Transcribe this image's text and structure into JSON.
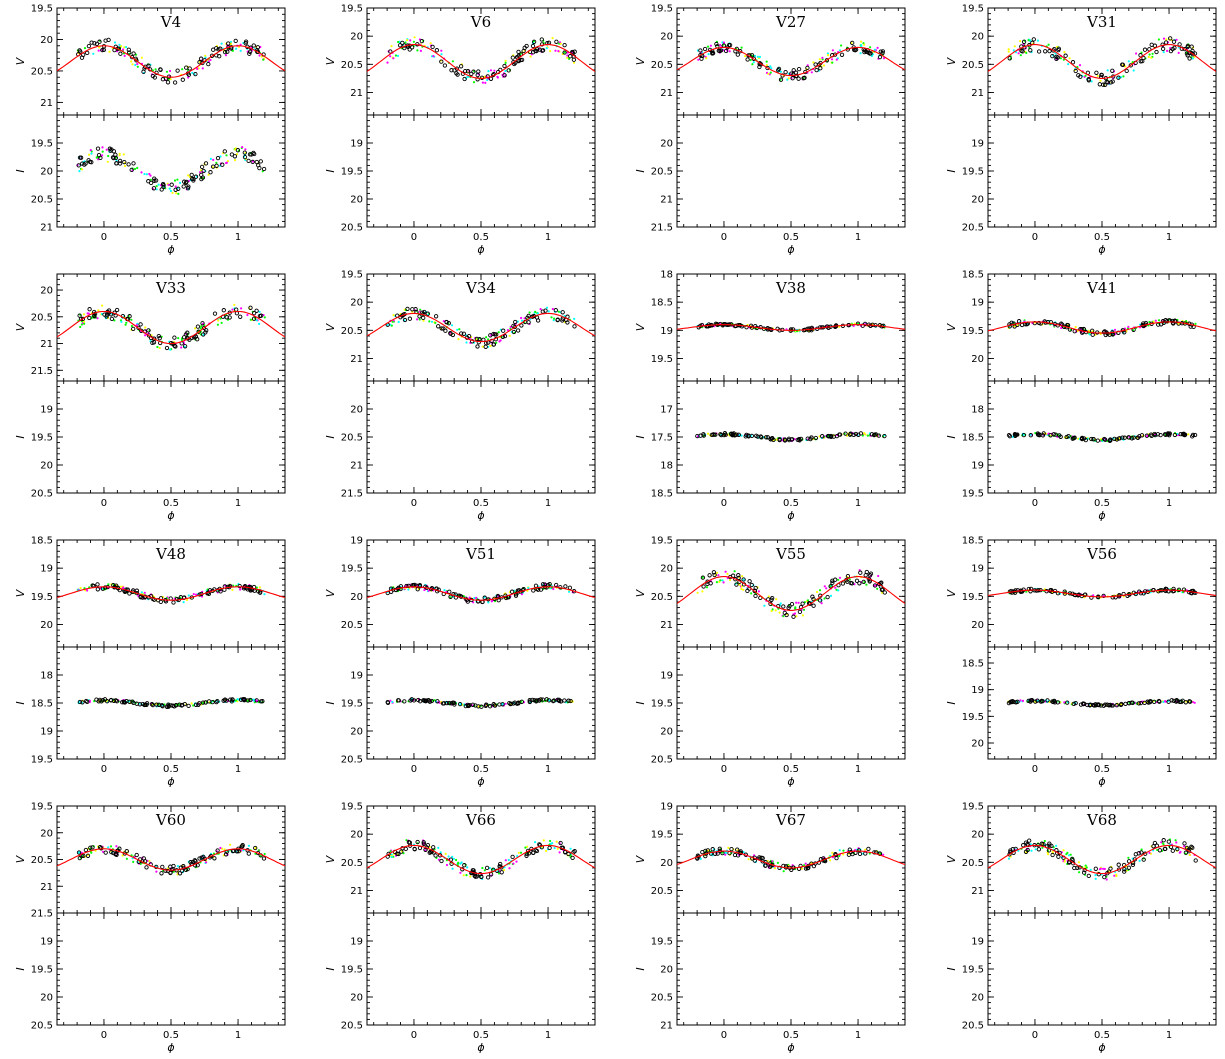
{
  "chart_data": {
    "type": "scatter",
    "grid": false,
    "colors": {
      "points": "#000000",
      "fit": "#ff0000",
      "extra_bands": [
        "#00ffff",
        "#ff00ff",
        "#ffff00",
        "#00ff00"
      ]
    },
    "panels": [
      {
        "title": "V4",
        "xlabel": "ϕ",
        "xlim": [
          -0.35,
          1.35
        ],
        "xticks": [
          0,
          0.5,
          1
        ],
        "v": {
          "ylabel": "V",
          "ylim": [
            21.2,
            19.5
          ],
          "yticks": [
            19.5,
            20,
            20.5,
            21
          ],
          "amp": 0.25,
          "has_fit": true,
          "points": true
        },
        "i": {
          "ylabel": "I",
          "ylim": [
            21,
            19
          ],
          "yticks": [
            19.5,
            20,
            20.5,
            21
          ],
          "amp": 0.3,
          "has_fit": false,
          "points": true
        }
      },
      {
        "title": "V6",
        "xlabel": "ϕ",
        "xlim": [
          -0.35,
          1.35
        ],
        "xticks": [
          0,
          0.5,
          1
        ],
        "v": {
          "ylabel": "V",
          "ylim": [
            21.4,
            19.5
          ],
          "yticks": [
            19.5,
            20,
            20.5,
            21
          ],
          "amp": 0.3,
          "has_fit": true,
          "points": true
        },
        "i": {
          "ylabel": "I",
          "ylim": [
            20.5,
            18.5
          ],
          "yticks": [
            19,
            19.5,
            20,
            20.5
          ],
          "has_fit": false,
          "points": false
        }
      },
      {
        "title": "V27",
        "xlabel": "ϕ",
        "xlim": [
          -0.35,
          1.35
        ],
        "xticks": [
          0,
          0.5,
          1
        ],
        "v": {
          "ylabel": "V",
          "ylim": [
            21.4,
            19.5
          ],
          "yticks": [
            19.5,
            20,
            20.5,
            21
          ],
          "amp": 0.25,
          "has_fit": true,
          "points": true
        },
        "i": {
          "ylabel": "I",
          "ylim": [
            21.5,
            19.5
          ],
          "yticks": [
            20,
            20.5,
            21,
            21.5
          ],
          "has_fit": false,
          "points": false
        }
      },
      {
        "title": "V31",
        "xlabel": "ϕ",
        "xlim": [
          -0.35,
          1.35
        ],
        "xticks": [
          0,
          0.5,
          1
        ],
        "v": {
          "ylabel": "V",
          "ylim": [
            21.4,
            19.5
          ],
          "yticks": [
            19.5,
            20,
            20.5,
            21
          ],
          "amp": 0.3,
          "has_fit": true,
          "points": true
        },
        "i": {
          "ylabel": "I",
          "ylim": [
            20.5,
            18.5
          ],
          "yticks": [
            19,
            19.5,
            20,
            20.5
          ],
          "has_fit": false,
          "points": false
        }
      },
      {
        "title": "V33",
        "xlabel": "ϕ",
        "xlim": [
          -0.35,
          1.35
        ],
        "xticks": [
          0,
          0.5,
          1
        ],
        "v": {
          "ylabel": "V",
          "ylim": [
            21.7,
            19.7
          ],
          "yticks": [
            20,
            20.5,
            21,
            21.5
          ],
          "amp": 0.3,
          "has_fit": true,
          "points": true
        },
        "i": {
          "ylabel": "I",
          "ylim": [
            20.5,
            18.5
          ],
          "yticks": [
            19,
            19.5,
            20,
            20.5
          ],
          "has_fit": false,
          "points": false
        }
      },
      {
        "title": "V34",
        "xlabel": "ϕ",
        "xlim": [
          -0.35,
          1.35
        ],
        "xticks": [
          0,
          0.5,
          1
        ],
        "v": {
          "ylabel": "V",
          "ylim": [
            21.4,
            19.5
          ],
          "yticks": [
            19.5,
            20,
            20.5,
            21
          ],
          "amp": 0.25,
          "has_fit": true,
          "points": true
        },
        "i": {
          "ylabel": "I",
          "ylim": [
            21.5,
            19.5
          ],
          "yticks": [
            20,
            20.5,
            21,
            21.5
          ],
          "has_fit": false,
          "points": false
        }
      },
      {
        "title": "V38",
        "xlabel": "ϕ",
        "xlim": [
          -0.35,
          1.35
        ],
        "xticks": [
          0,
          0.5,
          1
        ],
        "v": {
          "ylabel": "V",
          "ylim": [
            19.9,
            18
          ],
          "yticks": [
            18,
            18.5,
            19,
            19.5
          ],
          "amp": 0.05,
          "has_fit": true,
          "points": true
        },
        "i": {
          "ylabel": "I",
          "ylim": [
            18.5,
            16.5
          ],
          "yticks": [
            17,
            17.5,
            18,
            18.5
          ],
          "amp": 0.05,
          "has_fit": false,
          "points": true
        }
      },
      {
        "title": "V41",
        "xlabel": "ϕ",
        "xlim": [
          -0.35,
          1.35
        ],
        "xticks": [
          0,
          0.5,
          1
        ],
        "v": {
          "ylabel": "V",
          "ylim": [
            20.4,
            18.5
          ],
          "yticks": [
            18.5,
            19,
            19.5,
            20
          ],
          "amp": 0.1,
          "has_fit": true,
          "points": true
        },
        "i": {
          "ylabel": "I",
          "ylim": [
            19.5,
            17.5
          ],
          "yticks": [
            18,
            18.5,
            19,
            19.5
          ],
          "amp": 0.05,
          "has_fit": false,
          "points": true
        }
      },
      {
        "title": "V48",
        "xlabel": "ϕ",
        "xlim": [
          -0.35,
          1.35
        ],
        "xticks": [
          0,
          0.5,
          1
        ],
        "v": {
          "ylabel": "V",
          "ylim": [
            20.4,
            18.5
          ],
          "yticks": [
            18.5,
            19,
            19.5,
            20
          ],
          "amp": 0.12,
          "has_fit": true,
          "points": true
        },
        "i": {
          "ylabel": "I",
          "ylim": [
            19.5,
            17.5
          ],
          "yticks": [
            18,
            18.5,
            19,
            19.5
          ],
          "amp": 0.05,
          "has_fit": false,
          "points": true
        }
      },
      {
        "title": "V51",
        "xlabel": "ϕ",
        "xlim": [
          -0.35,
          1.35
        ],
        "xticks": [
          0,
          0.5,
          1
        ],
        "v": {
          "ylabel": "V",
          "ylim": [
            20.9,
            19
          ],
          "yticks": [
            19,
            19.5,
            20,
            20.5
          ],
          "amp": 0.12,
          "has_fit": true,
          "points": true
        },
        "i": {
          "ylabel": "I",
          "ylim": [
            20.5,
            18.5
          ],
          "yticks": [
            19,
            19.5,
            20,
            20.5
          ],
          "amp": 0.05,
          "has_fit": false,
          "points": true
        }
      },
      {
        "title": "V55",
        "xlabel": "ϕ",
        "xlim": [
          -0.35,
          1.35
        ],
        "xticks": [
          0,
          0.5,
          1
        ],
        "v": {
          "ylabel": "V",
          "ylim": [
            21.4,
            19.5
          ],
          "yticks": [
            19.5,
            20,
            20.5,
            21
          ],
          "amp": 0.3,
          "has_fit": true,
          "points": true
        },
        "i": {
          "ylabel": "I",
          "ylim": [
            20.5,
            18.5
          ],
          "yticks": [
            19,
            19.5,
            20,
            20.5
          ],
          "has_fit": false,
          "points": false
        }
      },
      {
        "title": "V56",
        "xlabel": "ϕ",
        "xlim": [
          -0.35,
          1.35
        ],
        "xticks": [
          0,
          0.5,
          1
        ],
        "v": {
          "ylabel": "V",
          "ylim": [
            20.4,
            18.5
          ],
          "yticks": [
            18.5,
            19,
            19.5,
            20
          ],
          "amp": 0.06,
          "has_fit": true,
          "points": true
        },
        "i": {
          "ylabel": "I",
          "ylim": [
            20.3,
            18.2
          ],
          "yticks": [
            18.5,
            19,
            19.5,
            20
          ],
          "amp": 0.04,
          "has_fit": false,
          "points": true
        }
      },
      {
        "title": "V60",
        "xlabel": "ϕ",
        "xlim": [
          -0.35,
          1.35
        ],
        "xticks": [
          0,
          0.5,
          1
        ],
        "v": {
          "ylabel": "V",
          "ylim": [
            21.5,
            19.5
          ],
          "yticks": [
            19.5,
            20,
            20.5,
            21,
            21.5
          ],
          "amp": 0.2,
          "has_fit": true,
          "points": true
        },
        "i": {
          "ylabel": "I",
          "ylim": [
            20.5,
            18.5
          ],
          "yticks": [
            19,
            19.5,
            20,
            20.5
          ],
          "has_fit": false,
          "points": false
        }
      },
      {
        "title": "V66",
        "xlabel": "ϕ",
        "xlim": [
          -0.35,
          1.35
        ],
        "xticks": [
          0,
          0.5,
          1
        ],
        "v": {
          "ylabel": "V",
          "ylim": [
            21.4,
            19.5
          ],
          "yticks": [
            19.5,
            20,
            20.5,
            21
          ],
          "amp": 0.25,
          "has_fit": true,
          "points": true
        },
        "i": {
          "ylabel": "I",
          "ylim": [
            20.5,
            18.5
          ],
          "yticks": [
            19,
            19.5,
            20,
            20.5
          ],
          "has_fit": false,
          "points": false
        }
      },
      {
        "title": "V67",
        "xlabel": "ϕ",
        "xlim": [
          -0.35,
          1.35
        ],
        "xticks": [
          0,
          0.5,
          1
        ],
        "v": {
          "ylabel": "V",
          "ylim": [
            20.9,
            19
          ],
          "yticks": [
            19,
            19.5,
            20,
            20.5
          ],
          "amp": 0.15,
          "has_fit": true,
          "points": true
        },
        "i": {
          "ylabel": "I",
          "ylim": [
            21,
            19
          ],
          "yticks": [
            19.5,
            20,
            20.5,
            21
          ],
          "has_fit": false,
          "points": false
        }
      },
      {
        "title": "V68",
        "xlabel": "ϕ",
        "xlim": [
          -0.35,
          1.35
        ],
        "xticks": [
          0,
          0.5,
          1
        ],
        "v": {
          "ylabel": "V",
          "ylim": [
            21.4,
            19.5
          ],
          "yticks": [
            19.5,
            20,
            20.5,
            21
          ],
          "amp": 0.25,
          "has_fit": true,
          "points": true
        },
        "i": {
          "ylabel": "I",
          "ylim": [
            20.5,
            18.5
          ],
          "yticks": [
            19,
            19.5,
            20,
            20.5
          ],
          "has_fit": false,
          "points": false
        }
      }
    ]
  }
}
